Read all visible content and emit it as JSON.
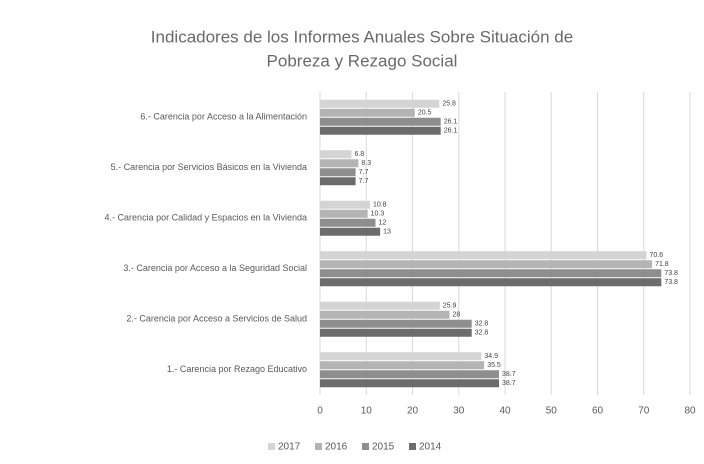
{
  "chart_data": {
    "type": "bar",
    "orientation": "horizontal",
    "title": [
      "Indicadores de los Informes Anuales Sobre Situación de",
      "Pobreza y Rezago Social"
    ],
    "categories": [
      "6.- Carencia por Acceso a la Alimentación",
      "5.- Carencia por Servicios Básicos en la Vivienda",
      "4.- Carencia por Calidad y Espacios en la Vivienda",
      "3.- Carencia por Acceso a la Seguridad Social",
      "2.- Carencia por Acceso a Servicios de Salud",
      "1.- Carencia por Rezago Educativo"
    ],
    "series": [
      {
        "name": "2017",
        "color": "#d4d4d4",
        "values": [
          25.8,
          6.8,
          10.8,
          70.6,
          25.9,
          34.9
        ]
      },
      {
        "name": "2016",
        "color": "#b4b4b4",
        "values": [
          20.5,
          8.3,
          10.3,
          71.8,
          28,
          35.5
        ]
      },
      {
        "name": "2015",
        "color": "#8e8e8e",
        "values": [
          26.1,
          7.7,
          12,
          73.8,
          32.8,
          38.7
        ]
      },
      {
        "name": "2014",
        "color": "#6c6c6c",
        "values": [
          26.1,
          7.7,
          13,
          73.8,
          32.8,
          38.7
        ]
      }
    ],
    "xlim": [
      0,
      80
    ],
    "xticks": [
      0,
      10,
      20,
      30,
      40,
      50,
      60,
      70,
      80
    ],
    "grid": true,
    "legend": "bottom"
  }
}
